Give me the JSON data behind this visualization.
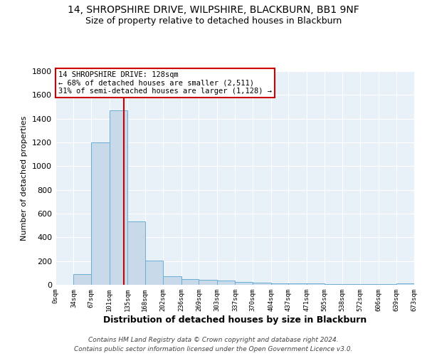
{
  "title1": "14, SHROPSHIRE DRIVE, WILPSHIRE, BLACKBURN, BB1 9NF",
  "title2": "Size of property relative to detached houses in Blackburn",
  "xlabel": "Distribution of detached houses by size in Blackburn",
  "ylabel": "Number of detached properties",
  "bar_color": "#c8d9ea",
  "bar_edge_color": "#6baed6",
  "bin_edges": [
    0,
    34,
    67,
    101,
    135,
    168,
    202,
    236,
    269,
    303,
    337,
    370,
    404,
    437,
    471,
    505,
    538,
    572,
    606,
    639,
    673
  ],
  "bar_heights": [
    0,
    90,
    1200,
    1470,
    535,
    205,
    75,
    50,
    45,
    35,
    25,
    20,
    15,
    10,
    10,
    8,
    5,
    5,
    5,
    15
  ],
  "tick_labels": [
    "0sqm",
    "34sqm",
    "67sqm",
    "101sqm",
    "135sqm",
    "168sqm",
    "202sqm",
    "236sqm",
    "269sqm",
    "303sqm",
    "337sqm",
    "370sqm",
    "404sqm",
    "437sqm",
    "471sqm",
    "505sqm",
    "538sqm",
    "572sqm",
    "606sqm",
    "639sqm",
    "673sqm"
  ],
  "red_line_x": 128,
  "ylim": [
    0,
    1800
  ],
  "yticks": [
    0,
    200,
    400,
    600,
    800,
    1000,
    1200,
    1400,
    1600,
    1800
  ],
  "annotation_line1": "14 SHROPSHIRE DRIVE: 128sqm",
  "annotation_line2": "← 68% of detached houses are smaller (2,511)",
  "annotation_line3": "31% of semi-detached houses are larger (1,128) →",
  "footnote1": "Contains HM Land Registry data © Crown copyright and database right 2024.",
  "footnote2": "Contains public sector information licensed under the Open Government Licence v3.0.",
  "background_color": "#ffffff",
  "plot_bg_color": "#e8f0f8",
  "grid_color": "#ffffff",
  "annotation_box_color": "#ffffff",
  "annotation_box_edge": "#cc0000",
  "title_fontsize": 10,
  "subtitle_fontsize": 9
}
